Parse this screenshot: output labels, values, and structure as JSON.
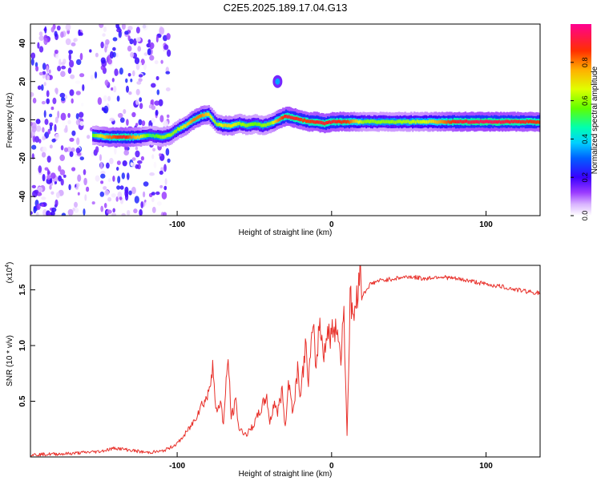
{
  "title": "C2E5.2025.189.17.04.G13",
  "chart_data": [
    {
      "type": "heatmap",
      "xlabel": "Height of straight line (km)",
      "ylabel": "Frequency (Hz)",
      "xlim": [
        -195,
        135
      ],
      "ylim": [
        -50,
        50
      ],
      "xticks": [
        {
          "v": -100,
          "label": "-100"
        },
        {
          "v": 0,
          "label": "0"
        },
        {
          "v": 100,
          "label": "100"
        }
      ],
      "yticks": [
        {
          "v": -40,
          "label": "-40"
        },
        {
          "v": -20,
          "label": "-20"
        },
        {
          "v": 0,
          "label": "0"
        },
        {
          "v": 20,
          "label": "20"
        },
        {
          "v": 40,
          "label": "40"
        }
      ],
      "colorbar": {
        "label": "Normalized spectral amplitude",
        "range": [
          0,
          1
        ],
        "ticks": [
          {
            "v": 0.0,
            "label": "0.0"
          },
          {
            "v": 0.2,
            "label": "0.2"
          },
          {
            "v": 0.4,
            "label": "0.4"
          },
          {
            "v": 0.6,
            "label": "0.6"
          },
          {
            "v": 0.8,
            "label": "0.8"
          }
        ]
      },
      "ridge": {
        "x": [
          -155,
          -145,
          -135,
          -125,
          -118,
          -110,
          -105,
          -100,
          -95,
          -90,
          -85,
          -80,
          -75,
          -70,
          -65,
          -60,
          -55,
          -50,
          -45,
          -40,
          -35,
          -30,
          -25,
          -20,
          -15,
          -10,
          -5,
          0,
          10,
          20,
          40,
          60,
          80,
          100,
          120,
          135
        ],
        "y": [
          -8,
          -9,
          -9,
          -9,
          -8,
          -9,
          -8,
          -5,
          -3,
          0,
          2,
          3,
          -2,
          -3,
          -3,
          -2,
          -3,
          -2,
          -3,
          -2,
          0,
          2,
          1,
          0,
          -1,
          -1,
          -2,
          -1,
          -1,
          -1,
          -1,
          -1,
          -1,
          -1,
          -1,
          -1
        ],
        "peak_amplitude": [
          0.55,
          0.8,
          0.9,
          0.7,
          0.5,
          0.6,
          0.6,
          0.6,
          0.7,
          0.8,
          0.8,
          0.7,
          0.6,
          0.7,
          0.7,
          0.6,
          0.6,
          0.55,
          0.6,
          0.6,
          0.8,
          0.9,
          0.9,
          0.85,
          0.85,
          0.9,
          0.9,
          0.9,
          0.85,
          0.6,
          0.6,
          0.65,
          0.9,
          0.95,
          0.9,
          0.85
        ]
      },
      "blobs": [
        {
          "x": -35,
          "y": 20,
          "amplitude": 0.35
        }
      ],
      "noise_region": {
        "x": [
          -195,
          -105
        ],
        "y": [
          -50,
          50
        ],
        "amplitude_max": 0.25
      }
    },
    {
      "type": "line",
      "xlabel": "Height of straight line (km)",
      "ylabel": "SNR (10 * v/v)",
      "multiplier": "(x10",
      "multiplier_exp": "4",
      "multiplier_close": ")",
      "xlim": [
        -195,
        135
      ],
      "ylim": [
        0,
        1.72
      ],
      "xticks": [
        {
          "v": -100,
          "label": "-100"
        },
        {
          "v": 0,
          "label": "0"
        },
        {
          "v": 100,
          "label": "100"
        }
      ],
      "yticks": [
        {
          "v": 0.5,
          "label": "0.5"
        },
        {
          "v": 1.0,
          "label": "1.0"
        },
        {
          "v": 1.5,
          "label": "1.5"
        }
      ],
      "color": "#e8302a",
      "x": [
        -195,
        -170,
        -150,
        -140,
        -130,
        -120,
        -110,
        -105,
        -100,
        -95,
        -90,
        -85,
        -80,
        -77,
        -75,
        -72,
        -70,
        -67,
        -65,
        -62,
        -60,
        -55,
        -50,
        -45,
        -42,
        -40,
        -37,
        -35,
        -32,
        -30,
        -28,
        -25,
        -22,
        -20,
        -17,
        -15,
        -12,
        -10,
        -8,
        -5,
        -3,
        0,
        3,
        6,
        8,
        10,
        12,
        15,
        18,
        20,
        25,
        30,
        40,
        50,
        60,
        70,
        80,
        90,
        100,
        110,
        120,
        135
      ],
      "y": [
        0.02,
        0.03,
        0.05,
        0.08,
        0.06,
        0.04,
        0.05,
        0.08,
        0.12,
        0.2,
        0.3,
        0.45,
        0.55,
        0.85,
        0.4,
        0.5,
        0.3,
        0.9,
        0.35,
        0.5,
        0.25,
        0.2,
        0.3,
        0.45,
        0.55,
        0.3,
        0.5,
        0.4,
        0.6,
        0.25,
        0.7,
        0.4,
        0.8,
        0.55,
        1.0,
        0.7,
        1.15,
        0.8,
        1.2,
        0.95,
        1.1,
        1.1,
        1.2,
        0.9,
        1.3,
        0.2,
        1.4,
        1.25,
        1.72,
        1.45,
        1.55,
        1.58,
        1.6,
        1.62,
        1.6,
        1.62,
        1.6,
        1.58,
        1.55,
        1.53,
        1.5,
        1.47
      ]
    }
  ]
}
